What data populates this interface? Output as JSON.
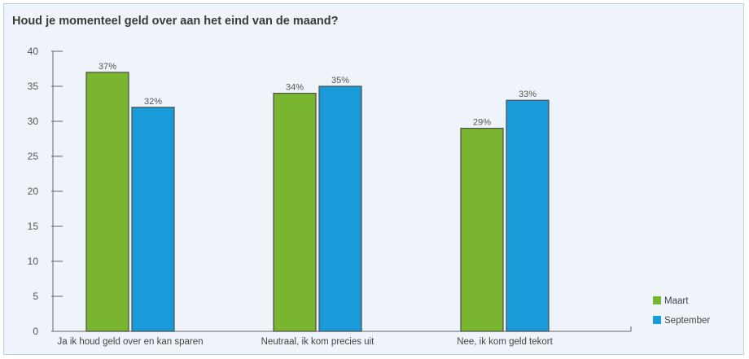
{
  "chart_data": {
    "type": "bar",
    "title": "Houd je momenteel geld over aan het eind van de maand?",
    "categories": [
      "Ja ik houd geld over en kan sparen",
      "Neutraal, ik kom precies uit",
      "Nee, ik kom geld tekort"
    ],
    "series": [
      {
        "name": "Maart",
        "values": [
          37,
          34,
          29
        ],
        "labels": [
          "37%",
          "34%",
          "29%"
        ],
        "color": "#7ab52f"
      },
      {
        "name": "September",
        "values": [
          32,
          35,
          33
        ],
        "labels": [
          "32%",
          "35%",
          "33%"
        ],
        "color": "#1a9ad9"
      }
    ],
    "yticks": [
      "0",
      "5",
      "10",
      "15",
      "20",
      "25",
      "30",
      "35",
      "40"
    ],
    "ylim": [
      0,
      40
    ],
    "legend_position": "bottom-right",
    "grid": false
  }
}
